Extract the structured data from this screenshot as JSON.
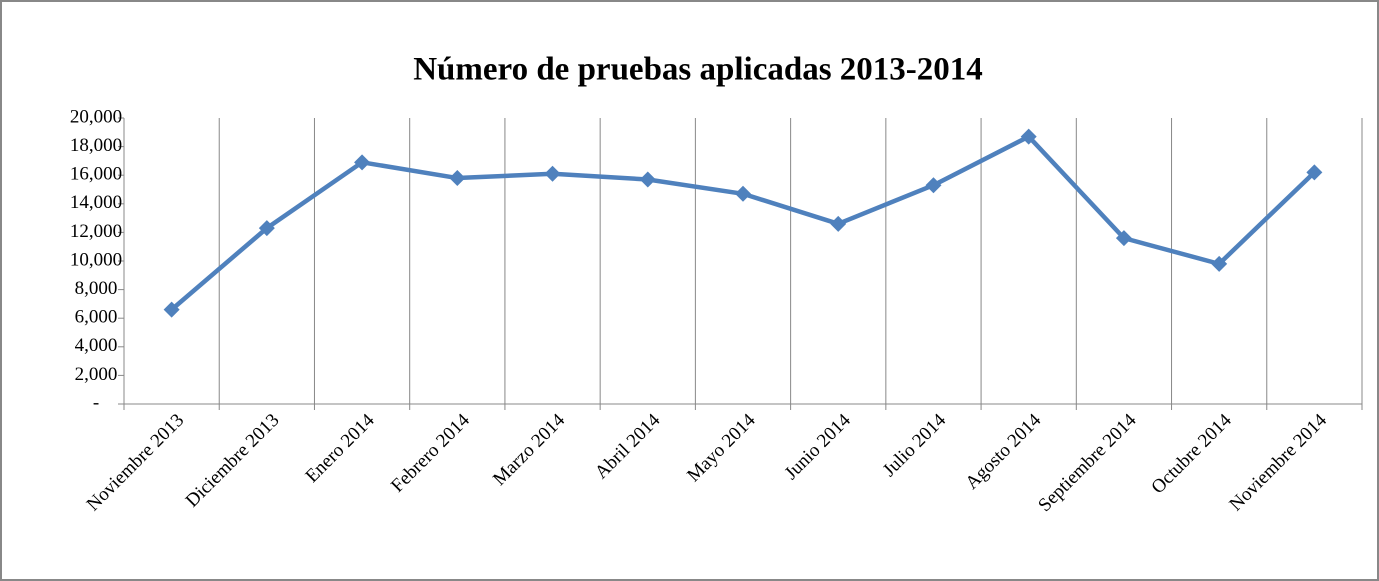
{
  "chart_data": {
    "type": "line",
    "title": "Número de pruebas aplicadas 2013-2014",
    "categories": [
      "Noviembre 2013",
      "Diciembre 2013",
      "Enero 2014",
      "Febrero 2014",
      "Marzo 2014",
      "Abril 2014",
      "Mayo 2014",
      "Junio 2014",
      "Julio 2014",
      "Agosto 2014",
      "Septiembre 2014",
      "Octubre 2014",
      "Noviembre 2014"
    ],
    "series": [
      {
        "color": "#4f81bd",
        "values": [
          6600,
          12300,
          16900,
          15800,
          16100,
          15700,
          14700,
          12600,
          15300,
          18700,
          11600,
          9800,
          16200
        ]
      }
    ],
    "ylim": [
      0,
      20000
    ],
    "yticks": [
      {
        "value": 0,
        "label": "-"
      },
      {
        "value": 2000,
        "label": "2,000"
      },
      {
        "value": 4000,
        "label": "4,000"
      },
      {
        "value": 6000,
        "label": "6,000"
      },
      {
        "value": 8000,
        "label": "8,000"
      },
      {
        "value": 10000,
        "label": "10,000"
      },
      {
        "value": 12000,
        "label": "12,000"
      },
      {
        "value": 14000,
        "label": "14,000"
      },
      {
        "value": 16000,
        "label": "16,000"
      },
      {
        "value": 18000,
        "label": "18,000"
      },
      {
        "value": 20000,
        "label": "20,000"
      }
    ],
    "grid": "x"
  }
}
